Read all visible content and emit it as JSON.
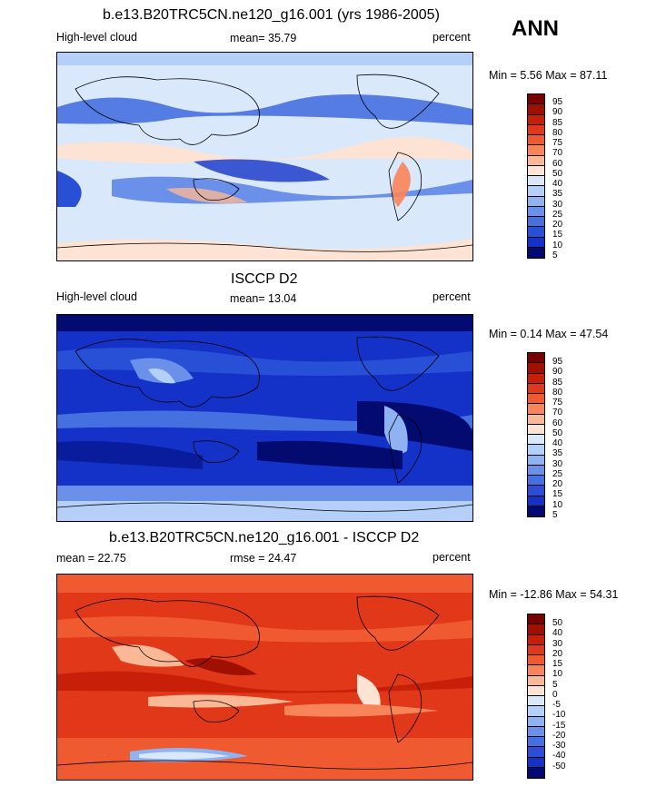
{
  "header": {
    "season": "ANN"
  },
  "panels": [
    {
      "title": "b.e13.B20TRC5CN.ne120_g16.001 (yrs 1986-2005)",
      "left_label": "High-level cloud",
      "center_label": "mean=  35.79",
      "right_label": "percent",
      "minmax": "Min =   5.56 Max =  87.11",
      "colorbar_labels": [
        "95",
        "90",
        "85",
        "80",
        "75",
        "70",
        "60",
        "50",
        "40",
        "35",
        "30",
        "25",
        "20",
        "15",
        "10",
        "5"
      ]
    },
    {
      "title": "ISCCP D2",
      "left_label": "High-level cloud",
      "center_label": "mean=  13.04",
      "right_label": "percent",
      "minmax": "Min =   0.14 Max =  47.54",
      "colorbar_labels": [
        "95",
        "90",
        "85",
        "80",
        "75",
        "70",
        "60",
        "50",
        "40",
        "35",
        "30",
        "25",
        "20",
        "15",
        "10",
        "5"
      ]
    },
    {
      "title": "b.e13.B20TRC5CN.ne120_g16.001 - ISCCP D2",
      "left_label": "mean =  22.75",
      "center_label": "rmse =  24.47",
      "right_label": "percent",
      "minmax": "Min = -12.86 Max =  54.31",
      "colorbar_labels": [
        "50",
        "40",
        "30",
        "20",
        "15",
        "10",
        "5",
        "0",
        "-5",
        "-10",
        "-15",
        "-20",
        "-30",
        "-40",
        "-50"
      ]
    }
  ],
  "colors": {
    "abs_scale": [
      "#7a0000",
      "#a01000",
      "#c82008",
      "#e03818",
      "#f05a30",
      "#f8845a",
      "#fab896",
      "#fde3d3",
      "#dae8fb",
      "#b5d0f8",
      "#8fb2f2",
      "#6a90ea",
      "#4570e0",
      "#2850d6",
      "#1432c8",
      "#081c9c",
      "#030a70"
    ],
    "diff_scale": [
      "#7a0000",
      "#a01000",
      "#c82008",
      "#e03818",
      "#f05a30",
      "#f8845a",
      "#fab896",
      "#fde3d3",
      "#dae8fb",
      "#b5d0f8",
      "#8fb2f2",
      "#6a90ea",
      "#4570e0",
      "#2850d6",
      "#1432c8",
      "#030a70"
    ]
  }
}
